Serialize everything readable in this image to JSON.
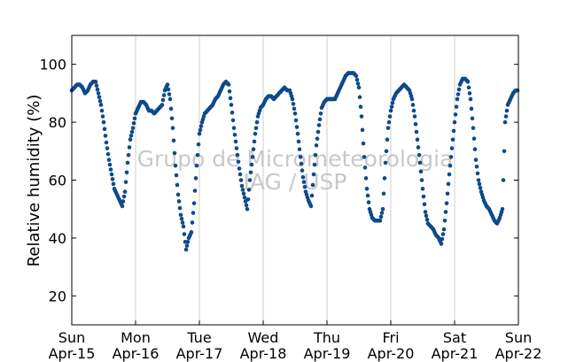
{
  "chart_data": {
    "type": "scatter",
    "ylabel": "Relative humidity (%)",
    "xlabel": "",
    "xlim": [
      "2018-04-15",
      "2018-04-22"
    ],
    "ylim": [
      10,
      110
    ],
    "yticks": [
      20,
      40,
      60,
      80,
      100
    ],
    "xtick_labels": [
      {
        "day": "Sun",
        "date": "Apr-15"
      },
      {
        "day": "Mon",
        "date": "Apr-16"
      },
      {
        "day": "Tue",
        "date": "Apr-17"
      },
      {
        "day": "Wed",
        "date": "Apr-18"
      },
      {
        "day": "Thu",
        "date": "Apr-19"
      },
      {
        "day": "Fri",
        "date": "Apr-20"
      },
      {
        "day": "Sat",
        "date": "Apr-21"
      },
      {
        "day": "Sun",
        "date": "Apr-22"
      }
    ],
    "grid": "vertical",
    "marker_color": "#0f4a8a",
    "watermark": [
      "Grupo de Micrometeorologia",
      "IAG / USP"
    ],
    "series": [
      {
        "x": [
          "2018-04-15T00:00",
          "2018-04-15T01:00",
          "2018-04-15T02:00",
          "2018-04-15T03:00",
          "2018-04-15T04:00",
          "2018-04-15T05:00",
          "2018-04-15T06:00",
          "2018-04-15T07:00",
          "2018-04-15T08:00",
          "2018-04-15T09:00",
          "2018-04-15T10:00",
          "2018-04-15T11:00",
          "2018-04-15T12:00",
          "2018-04-15T13:00",
          "2018-04-15T14:00",
          "2018-04-15T15:00",
          "2018-04-15T16:00",
          "2018-04-15T17:00",
          "2018-04-15T18:00",
          "2018-04-15T19:00",
          "2018-04-15T20:00",
          "2018-04-15T21:00",
          "2018-04-15T22:00",
          "2018-04-15T23:00",
          "2018-04-16T00:00",
          "2018-04-16T01:00",
          "2018-04-16T02:00",
          "2018-04-16T03:00",
          "2018-04-16T04:00",
          "2018-04-16T05:00",
          "2018-04-16T06:00",
          "2018-04-16T07:00",
          "2018-04-16T08:00",
          "2018-04-16T09:00",
          "2018-04-16T10:00",
          "2018-04-16T11:00",
          "2018-04-16T12:00",
          "2018-04-16T13:00",
          "2018-04-16T14:00",
          "2018-04-16T15:00",
          "2018-04-16T16:00",
          "2018-04-16T17:00",
          "2018-04-16T18:00",
          "2018-04-16T19:00",
          "2018-04-16T20:00",
          "2018-04-16T21:00",
          "2018-04-16T22:00",
          "2018-04-16T23:00",
          "2018-04-17T00:00",
          "2018-04-17T01:00",
          "2018-04-17T02:00",
          "2018-04-17T03:00",
          "2018-04-17T04:00",
          "2018-04-17T05:00",
          "2018-04-17T06:00",
          "2018-04-17T07:00",
          "2018-04-17T08:00",
          "2018-04-17T09:00",
          "2018-04-17T10:00",
          "2018-04-17T11:00",
          "2018-04-17T12:00",
          "2018-04-17T13:00",
          "2018-04-17T14:00",
          "2018-04-17T15:00",
          "2018-04-17T16:00",
          "2018-04-17T17:00",
          "2018-04-17T18:00",
          "2018-04-17T19:00",
          "2018-04-17T20:00",
          "2018-04-17T21:00",
          "2018-04-17T22:00",
          "2018-04-17T23:00",
          "2018-04-18T00:00",
          "2018-04-18T01:00",
          "2018-04-18T02:00",
          "2018-04-18T03:00",
          "2018-04-18T04:00",
          "2018-04-18T05:00",
          "2018-04-18T06:00",
          "2018-04-18T07:00",
          "2018-04-18T08:00",
          "2018-04-18T09:00",
          "2018-04-18T10:00",
          "2018-04-18T11:00",
          "2018-04-18T12:00",
          "2018-04-18T13:00",
          "2018-04-18T14:00",
          "2018-04-18T15:00",
          "2018-04-18T16:00",
          "2018-04-18T17:00",
          "2018-04-18T18:00",
          "2018-04-18T19:00",
          "2018-04-18T20:00",
          "2018-04-18T21:00",
          "2018-04-18T22:00",
          "2018-04-18T23:00",
          "2018-04-19T00:00",
          "2018-04-19T01:00",
          "2018-04-19T02:00",
          "2018-04-19T03:00",
          "2018-04-19T04:00",
          "2018-04-19T05:00",
          "2018-04-19T06:00",
          "2018-04-19T07:00",
          "2018-04-19T08:00",
          "2018-04-19T09:00",
          "2018-04-19T10:00",
          "2018-04-19T11:00",
          "2018-04-19T12:00",
          "2018-04-19T13:00",
          "2018-04-19T14:00",
          "2018-04-19T15:00",
          "2018-04-19T16:00",
          "2018-04-19T17:00",
          "2018-04-19T18:00",
          "2018-04-19T19:00",
          "2018-04-19T20:00",
          "2018-04-19T21:00",
          "2018-04-19T22:00",
          "2018-04-19T23:00",
          "2018-04-20T00:00",
          "2018-04-20T01:00",
          "2018-04-20T02:00",
          "2018-04-20T03:00",
          "2018-04-20T04:00",
          "2018-04-20T05:00",
          "2018-04-20T06:00",
          "2018-04-20T07:00",
          "2018-04-20T08:00",
          "2018-04-20T09:00",
          "2018-04-20T10:00",
          "2018-04-20T11:00",
          "2018-04-20T12:00",
          "2018-04-20T13:00",
          "2018-04-20T14:00",
          "2018-04-20T15:00",
          "2018-04-20T16:00",
          "2018-04-20T17:00",
          "2018-04-20T18:00",
          "2018-04-20T19:00",
          "2018-04-20T20:00",
          "2018-04-20T21:00",
          "2018-04-20T22:00",
          "2018-04-20T23:00",
          "2018-04-21T00:00",
          "2018-04-21T01:00",
          "2018-04-21T02:00",
          "2018-04-21T03:00",
          "2018-04-21T04:00",
          "2018-04-21T05:00",
          "2018-04-21T06:00",
          "2018-04-21T07:00",
          "2018-04-21T08:00",
          "2018-04-21T09:00",
          "2018-04-21T10:00",
          "2018-04-21T11:00",
          "2018-04-21T12:00",
          "2018-04-21T13:00",
          "2018-04-21T14:00",
          "2018-04-21T15:00",
          "2018-04-21T16:00",
          "2018-04-21T17:00",
          "2018-04-21T18:00",
          "2018-04-21T19:00",
          "2018-04-21T20:00",
          "2018-04-21T21:00",
          "2018-04-21T22:00",
          "2018-04-21T23:00"
        ],
        "y": [
          91,
          92,
          93,
          93,
          92,
          90,
          91,
          93,
          94,
          94,
          90,
          86,
          80,
          73,
          67,
          62,
          57,
          55,
          53,
          51,
          56,
          66,
          74,
          78,
          83,
          85,
          87,
          87,
          86,
          84,
          84,
          83,
          84,
          85,
          86,
          91,
          93,
          88,
          78,
          65,
          55,
          48,
          44,
          36,
          40,
          42,
          52,
          65,
          76,
          80,
          83,
          84,
          85,
          86,
          88,
          89,
          91,
          93,
          94,
          93,
          86,
          78,
          71,
          64,
          58,
          54,
          50,
          60,
          68,
          76,
          82,
          85,
          86,
          88,
          89,
          89,
          88,
          89,
          90,
          91,
          92,
          91,
          91,
          88,
          83,
          76,
          68,
          61,
          56,
          53,
          51,
          62,
          72,
          79,
          85,
          87,
          88,
          88,
          88,
          88,
          90,
          92,
          94,
          96,
          97,
          97,
          97,
          96,
          92,
          82,
          68,
          57,
          50,
          47,
          46,
          46,
          46,
          50,
          66,
          78,
          84,
          88,
          90,
          91,
          92,
          93,
          92,
          91,
          88,
          82,
          74,
          66,
          57,
          49,
          45,
          44,
          43,
          41,
          40,
          38,
          43,
          52,
          62,
          71,
          80,
          88,
          93,
          95,
          95,
          94,
          88,
          78,
          67,
          60,
          56,
          53,
          51,
          50,
          48,
          46,
          45,
          47,
          50,
          80,
          86,
          88,
          90,
          91
        ]
      }
    ]
  }
}
